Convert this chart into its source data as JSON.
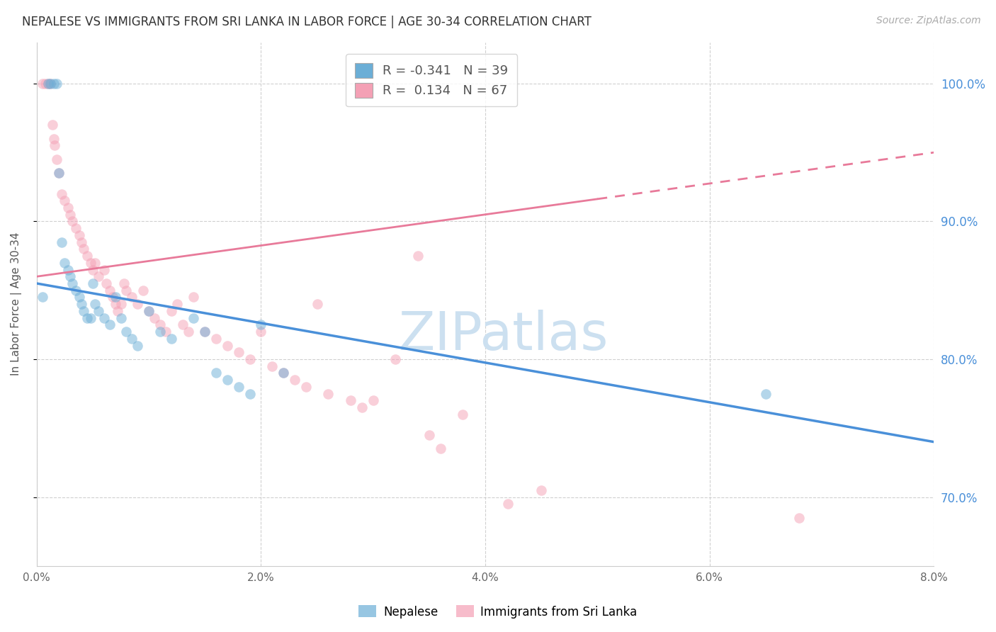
{
  "title": "NEPALESE VS IMMIGRANTS FROM SRI LANKA IN LABOR FORCE | AGE 30-34 CORRELATION CHART",
  "source": "Source: ZipAtlas.com",
  "xlabel_bottom_ticks": [
    "0.0%",
    "2.0%",
    "4.0%",
    "6.0%",
    "8.0%"
  ],
  "xlabel_bottom_vals": [
    0.0,
    2.0,
    4.0,
    6.0,
    8.0
  ],
  "ylabel_left": "In Labor Force | Age 30-34",
  "ylabel_right_ticks": [
    "100.0%",
    "90.0%",
    "80.0%",
    "70.0%"
  ],
  "ylabel_right_vals": [
    100.0,
    90.0,
    80.0,
    70.0
  ],
  "xlim": [
    0.0,
    8.0
  ],
  "ylim": [
    65.0,
    103.0
  ],
  "legend_entries": [
    {
      "label": "R = -0.341   N = 39",
      "color": "#7eb3e0"
    },
    {
      "label": "R =  0.134   N = 67",
      "color": "#f0a0b8"
    }
  ],
  "legend_labels": [
    "Nepalese",
    "Immigrants from Sri Lanka"
  ],
  "watermark": "ZIPatlas",
  "blue_scatter": [
    [
      0.05,
      84.5
    ],
    [
      0.1,
      100.0
    ],
    [
      0.12,
      100.0
    ],
    [
      0.15,
      100.0
    ],
    [
      0.18,
      100.0
    ],
    [
      0.2,
      93.5
    ],
    [
      0.22,
      88.5
    ],
    [
      0.25,
      87.0
    ],
    [
      0.28,
      86.5
    ],
    [
      0.3,
      86.0
    ],
    [
      0.32,
      85.5
    ],
    [
      0.35,
      85.0
    ],
    [
      0.38,
      84.5
    ],
    [
      0.4,
      84.0
    ],
    [
      0.42,
      83.5
    ],
    [
      0.45,
      83.0
    ],
    [
      0.48,
      83.0
    ],
    [
      0.5,
      85.5
    ],
    [
      0.52,
      84.0
    ],
    [
      0.55,
      83.5
    ],
    [
      0.6,
      83.0
    ],
    [
      0.65,
      82.5
    ],
    [
      0.7,
      84.5
    ],
    [
      0.75,
      83.0
    ],
    [
      0.8,
      82.0
    ],
    [
      0.85,
      81.5
    ],
    [
      0.9,
      81.0
    ],
    [
      1.0,
      83.5
    ],
    [
      1.1,
      82.0
    ],
    [
      1.2,
      81.5
    ],
    [
      1.4,
      83.0
    ],
    [
      1.5,
      82.0
    ],
    [
      1.6,
      79.0
    ],
    [
      1.7,
      78.5
    ],
    [
      1.8,
      78.0
    ],
    [
      1.9,
      77.5
    ],
    [
      2.0,
      82.5
    ],
    [
      2.2,
      79.0
    ],
    [
      6.5,
      77.5
    ]
  ],
  "pink_scatter": [
    [
      0.05,
      100.0
    ],
    [
      0.08,
      100.0
    ],
    [
      0.1,
      100.0
    ],
    [
      0.12,
      100.0
    ],
    [
      0.14,
      97.0
    ],
    [
      0.15,
      96.0
    ],
    [
      0.16,
      95.5
    ],
    [
      0.18,
      94.5
    ],
    [
      0.2,
      93.5
    ],
    [
      0.22,
      92.0
    ],
    [
      0.25,
      91.5
    ],
    [
      0.28,
      91.0
    ],
    [
      0.3,
      90.5
    ],
    [
      0.32,
      90.0
    ],
    [
      0.35,
      89.5
    ],
    [
      0.38,
      89.0
    ],
    [
      0.4,
      88.5
    ],
    [
      0.42,
      88.0
    ],
    [
      0.45,
      87.5
    ],
    [
      0.48,
      87.0
    ],
    [
      0.5,
      86.5
    ],
    [
      0.52,
      87.0
    ],
    [
      0.55,
      86.0
    ],
    [
      0.6,
      86.5
    ],
    [
      0.62,
      85.5
    ],
    [
      0.65,
      85.0
    ],
    [
      0.68,
      84.5
    ],
    [
      0.7,
      84.0
    ],
    [
      0.72,
      83.5
    ],
    [
      0.75,
      84.0
    ],
    [
      0.78,
      85.5
    ],
    [
      0.8,
      85.0
    ],
    [
      0.85,
      84.5
    ],
    [
      0.9,
      84.0
    ],
    [
      0.95,
      85.0
    ],
    [
      1.0,
      83.5
    ],
    [
      1.05,
      83.0
    ],
    [
      1.1,
      82.5
    ],
    [
      1.15,
      82.0
    ],
    [
      1.2,
      83.5
    ],
    [
      1.25,
      84.0
    ],
    [
      1.3,
      82.5
    ],
    [
      1.35,
      82.0
    ],
    [
      1.4,
      84.5
    ],
    [
      1.5,
      82.0
    ],
    [
      1.6,
      81.5
    ],
    [
      1.7,
      81.0
    ],
    [
      1.8,
      80.5
    ],
    [
      1.9,
      80.0
    ],
    [
      2.0,
      82.0
    ],
    [
      2.1,
      79.5
    ],
    [
      2.2,
      79.0
    ],
    [
      2.3,
      78.5
    ],
    [
      2.4,
      78.0
    ],
    [
      2.5,
      84.0
    ],
    [
      2.6,
      77.5
    ],
    [
      2.8,
      77.0
    ],
    [
      2.9,
      76.5
    ],
    [
      3.0,
      77.0
    ],
    [
      3.2,
      80.0
    ],
    [
      3.4,
      87.5
    ],
    [
      3.5,
      74.5
    ],
    [
      3.6,
      73.5
    ],
    [
      3.8,
      76.0
    ],
    [
      4.2,
      69.5
    ],
    [
      4.5,
      70.5
    ],
    [
      6.8,
      68.5
    ]
  ],
  "blue_line": {
    "x0": 0.0,
    "y0": 85.5,
    "x1": 8.0,
    "y1": 74.0
  },
  "pink_line": {
    "x0": 0.0,
    "y0": 86.0,
    "x1": 8.0,
    "y1": 95.0
  },
  "pink_line_solid_end": 5.0,
  "colors": {
    "blue": "#6baed6",
    "pink": "#f4a0b5",
    "blue_line": "#4a90d9",
    "pink_line": "#e87a9a",
    "axis_right": "#4a90d9",
    "grid": "#d0d0d0",
    "title": "#333333",
    "source": "#aaaaaa",
    "watermark": "#cce0f0"
  }
}
